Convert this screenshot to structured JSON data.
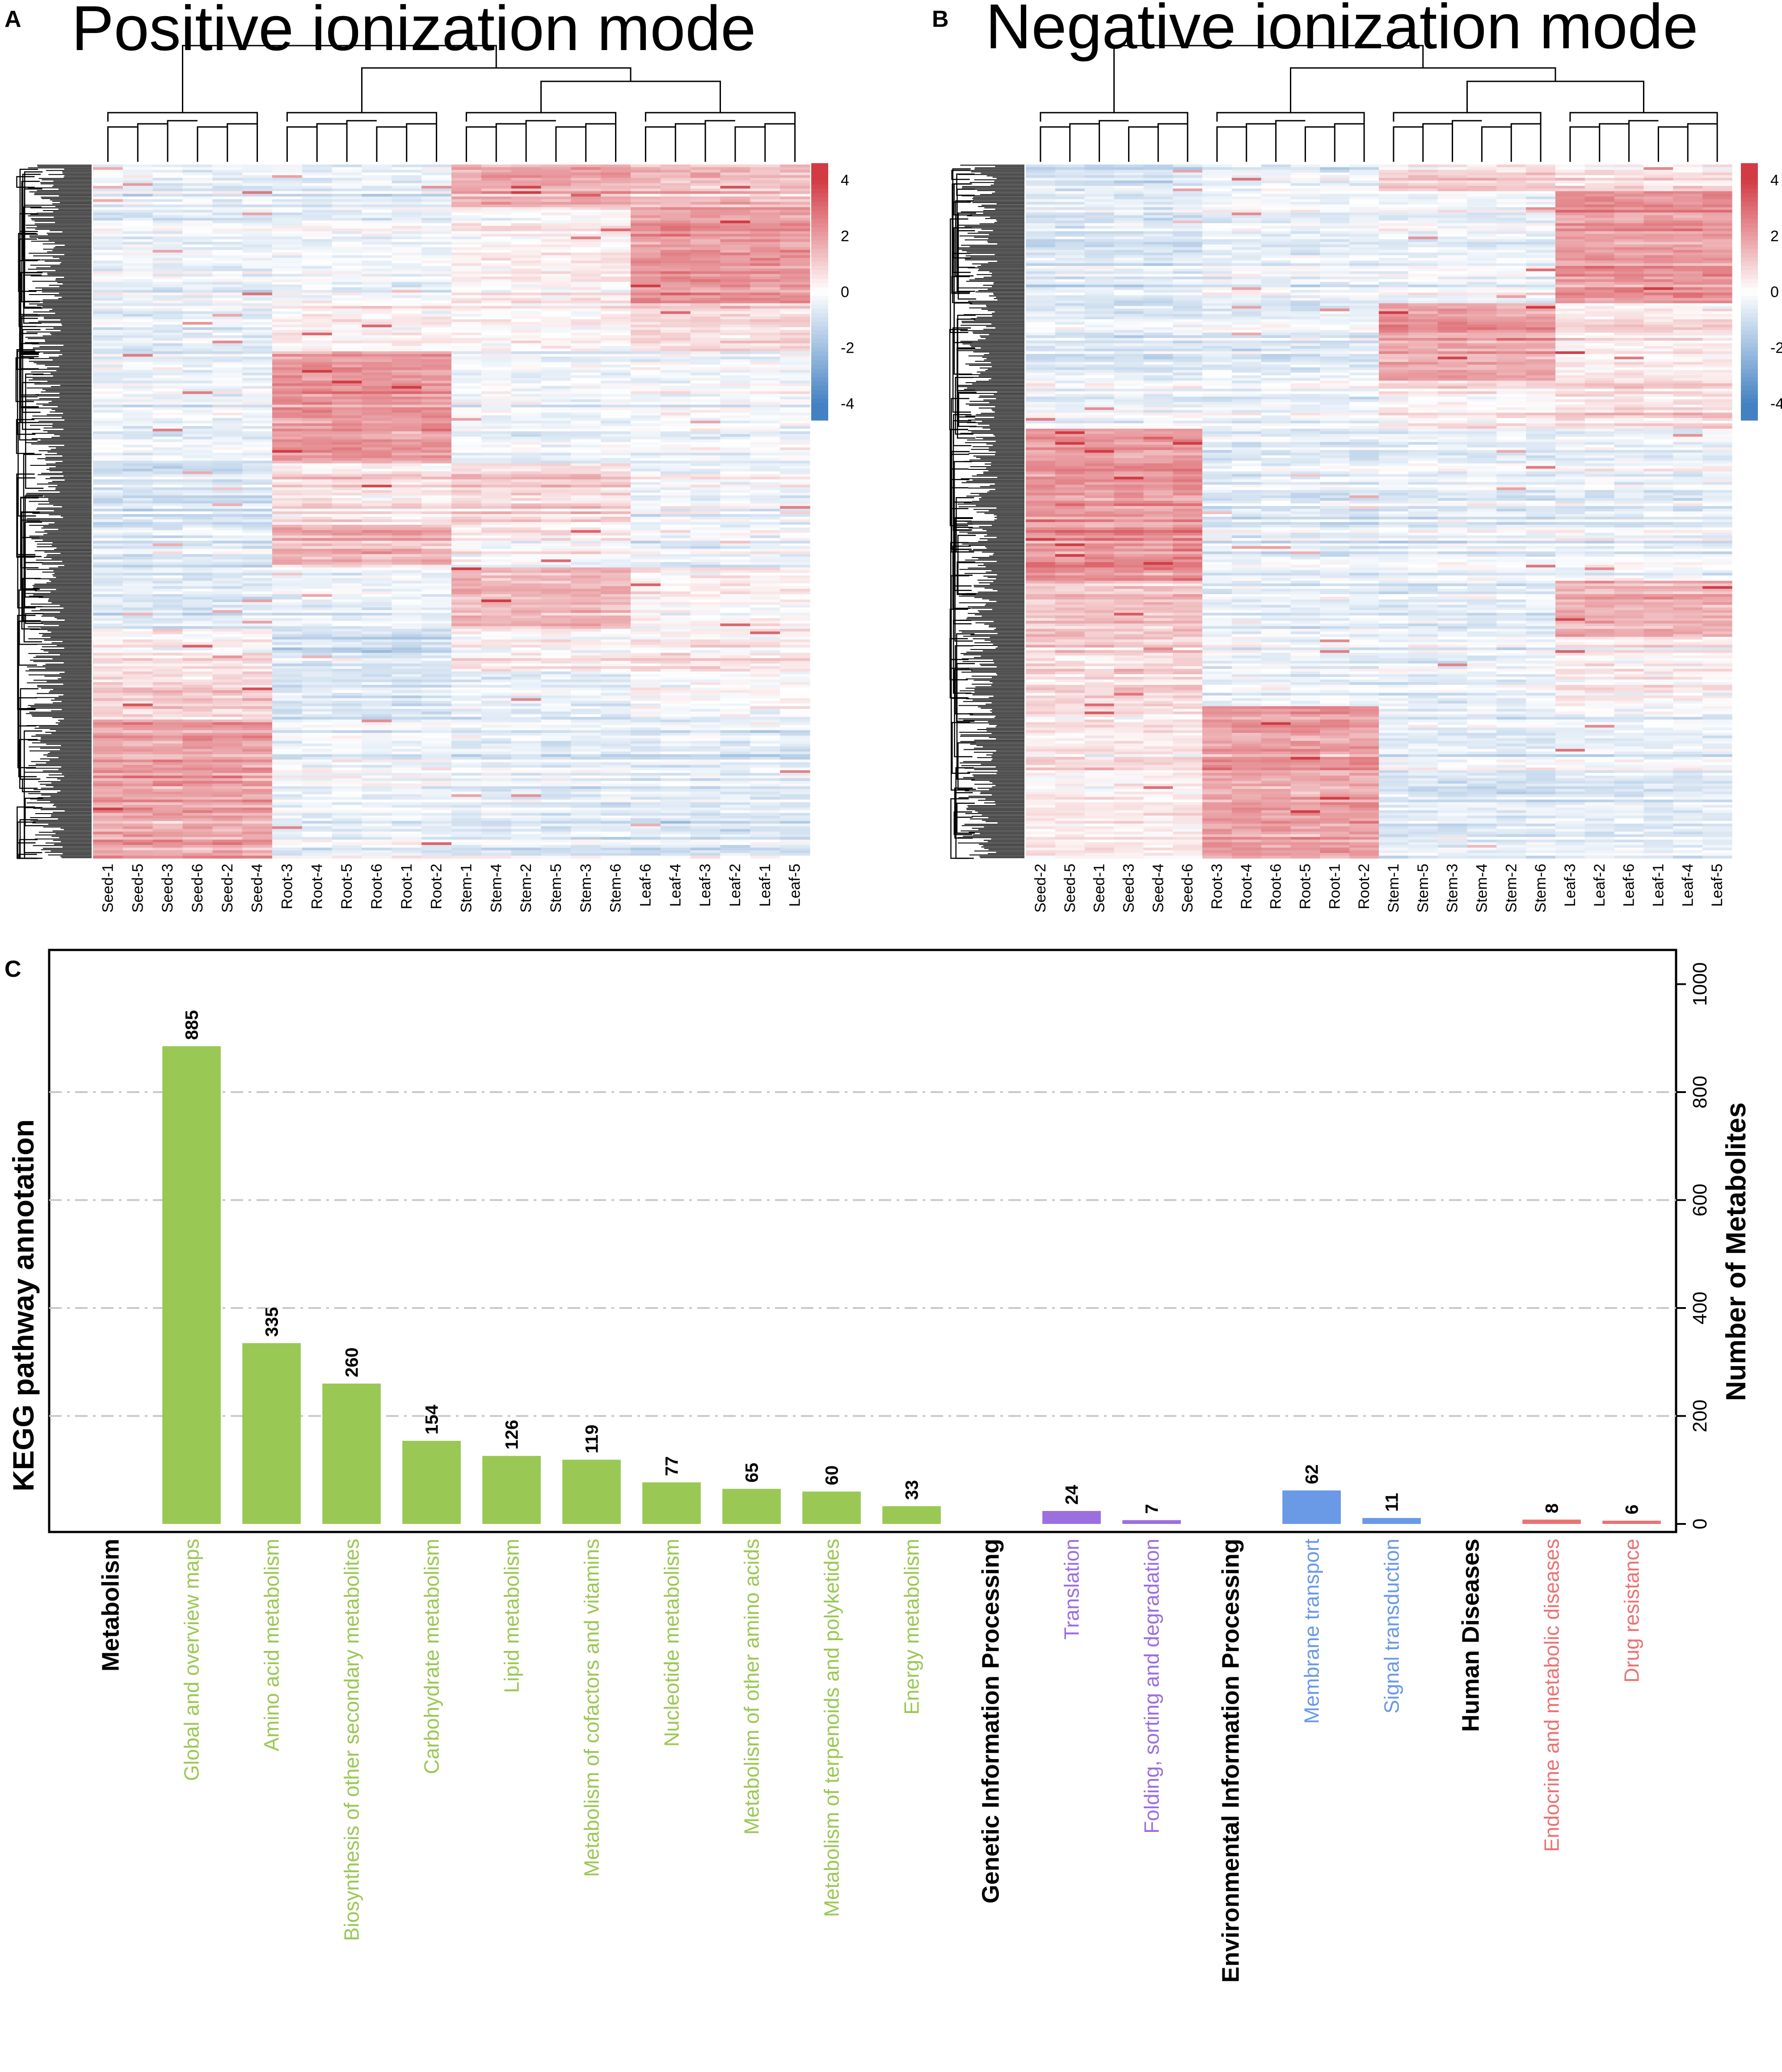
{
  "colors": {
    "heat_high": "#d0313a",
    "heat_mid": "#ffffff",
    "heat_low": "#3b7bbf",
    "metabolism": "#9ac855",
    "genetic": "#9b6fe0",
    "environmental": "#6a99e6",
    "human": "#ea7373",
    "grid": "#c8c8c8"
  },
  "panels": {
    "a": {
      "letter": "A",
      "title": "Positive ionization mode",
      "samples": [
        "Seed-1",
        "Seed-5",
        "Seed-3",
        "Seed-6",
        "Seed-2",
        "Seed-4",
        "Root-3",
        "Root-4",
        "Root-5",
        "Root-6",
        "Root-1",
        "Root-2",
        "Stem-1",
        "Stem-4",
        "Stem-2",
        "Stem-5",
        "Stem-3",
        "Stem-6",
        "Leaf-6",
        "Leaf-4",
        "Leaf-3",
        "Leaf-2",
        "Leaf-1",
        "Leaf-5"
      ],
      "group_order": [
        "Seed",
        "Root",
        "Stem",
        "Leaf"
      ],
      "blocks": [
        {
          "from": 0.0,
          "to": 0.06,
          "Seed": -0.5,
          "Root": -0.6,
          "Stem": 1.6,
          "Leaf": 1.2
        },
        {
          "from": 0.06,
          "to": 0.2,
          "Seed": -0.4,
          "Root": -0.3,
          "Stem": 0.3,
          "Leaf": 2.1
        },
        {
          "from": 0.2,
          "to": 0.27,
          "Seed": -0.6,
          "Root": 0.2,
          "Stem": 0.1,
          "Leaf": 0.7
        },
        {
          "from": 0.27,
          "to": 0.43,
          "Seed": -0.5,
          "Root": 2.0,
          "Stem": -0.4,
          "Leaf": -0.3
        },
        {
          "from": 0.43,
          "to": 0.52,
          "Seed": -0.8,
          "Root": 0.6,
          "Stem": 0.9,
          "Leaf": -0.2
        },
        {
          "from": 0.52,
          "to": 0.58,
          "Seed": -0.6,
          "Root": 1.6,
          "Stem": 0.2,
          "Leaf": -0.3
        },
        {
          "from": 0.58,
          "to": 0.67,
          "Seed": -0.7,
          "Root": -0.4,
          "Stem": 1.5,
          "Leaf": 0.2
        },
        {
          "from": 0.67,
          "to": 0.73,
          "Seed": 0.4,
          "Root": -0.9,
          "Stem": 0.3,
          "Leaf": 0.5
        },
        {
          "from": 0.73,
          "to": 0.8,
          "Seed": 1.0,
          "Root": -0.7,
          "Stem": -0.4,
          "Leaf": 0.1
        },
        {
          "from": 0.8,
          "to": 1.0,
          "Seed": 1.9,
          "Root": -0.3,
          "Stem": -0.5,
          "Leaf": -0.6
        }
      ],
      "scale_ticks": [
        "4",
        "2",
        "0",
        "-2",
        "-4"
      ]
    },
    "b": {
      "letter": "B",
      "title": "Negative ionization mode",
      "samples": [
        "Seed-2",
        "Seed-5",
        "Seed-1",
        "Seed-3",
        "Seed-4",
        "Seed-6",
        "Root-3",
        "Root-4",
        "Root-6",
        "Root-5",
        "Root-1",
        "Root-2",
        "Stem-1",
        "Stem-5",
        "Stem-3",
        "Stem-4",
        "Stem-2",
        "Stem-6",
        "Leaf-3",
        "Leaf-2",
        "Leaf-6",
        "Leaf-1",
        "Leaf-4",
        "Leaf-5"
      ],
      "group_order": [
        "Seed",
        "Root",
        "Stem",
        "Leaf"
      ],
      "blocks": [
        {
          "from": 0.0,
          "to": 0.04,
          "Seed": -0.7,
          "Root": -0.3,
          "Stem": 1.1,
          "Leaf": 0.7
        },
        {
          "from": 0.04,
          "to": 0.2,
          "Seed": -0.6,
          "Root": -0.3,
          "Stem": -0.2,
          "Leaf": 2.2
        },
        {
          "from": 0.2,
          "to": 0.31,
          "Seed": -0.6,
          "Root": -0.5,
          "Stem": 1.9,
          "Leaf": 0.5
        },
        {
          "from": 0.31,
          "to": 0.38,
          "Seed": -0.4,
          "Root": -0.4,
          "Stem": 0.3,
          "Leaf": 0.6
        },
        {
          "from": 0.38,
          "to": 0.6,
          "Seed": 2.1,
          "Root": -0.6,
          "Stem": -0.5,
          "Leaf": -0.4
        },
        {
          "from": 0.6,
          "to": 0.68,
          "Seed": 1.2,
          "Root": -0.5,
          "Stem": -0.6,
          "Leaf": 1.6
        },
        {
          "from": 0.68,
          "to": 0.78,
          "Seed": 0.8,
          "Root": -0.3,
          "Stem": -0.4,
          "Leaf": 0.3
        },
        {
          "from": 0.78,
          "to": 1.0,
          "Seed": 0.5,
          "Root": 2.0,
          "Stem": -0.5,
          "Leaf": -0.4
        }
      ],
      "scale_ticks": [
        "4",
        "2",
        "0",
        "-2",
        "-4"
      ]
    }
  },
  "chart_data": {
    "type": "bar",
    "panel_letter": "C",
    "title": "",
    "ylabel_left": "KEGG pathway annotation",
    "ylabel": "Number of Metabolites",
    "ylim": [
      0,
      1060
    ],
    "yticks": [
      0,
      200,
      400,
      600,
      800,
      1000
    ],
    "grid_lines": [
      200,
      400,
      600,
      800
    ],
    "categories": [
      {
        "label": "Metabolism",
        "value": null,
        "group": "header"
      },
      {
        "label": "Global and overview maps",
        "value": 885,
        "group": "metabolism"
      },
      {
        "label": "Amino acid metabolism",
        "value": 335,
        "group": "metabolism"
      },
      {
        "label": "Biosynthesis of other secondary metabolites",
        "value": 260,
        "group": "metabolism"
      },
      {
        "label": "Carbohydrate metabolism",
        "value": 154,
        "group": "metabolism"
      },
      {
        "label": "Lipid metabolism",
        "value": 126,
        "group": "metabolism"
      },
      {
        "label": "Metabolism of cofactors and vitamins",
        "value": 119,
        "group": "metabolism"
      },
      {
        "label": "Nucleotide metabolism",
        "value": 77,
        "group": "metabolism"
      },
      {
        "label": "Metabolism of other amino acids",
        "value": 65,
        "group": "metabolism"
      },
      {
        "label": "Metabolism of terpenoids and polyketides",
        "value": 60,
        "group": "metabolism"
      },
      {
        "label": "Energy metabolism",
        "value": 33,
        "group": "metabolism"
      },
      {
        "label": "Genetic Information Processing",
        "value": null,
        "group": "header"
      },
      {
        "label": "Translation",
        "value": 24,
        "group": "genetic"
      },
      {
        "label": "Folding, sorting and degradation",
        "value": 7,
        "group": "genetic"
      },
      {
        "label": "Environmental Information Processing",
        "value": null,
        "group": "header"
      },
      {
        "label": "Membrane transport",
        "value": 62,
        "group": "environmental"
      },
      {
        "label": "Signal transduction",
        "value": 11,
        "group": "environmental"
      },
      {
        "label": "Human Diseases",
        "value": null,
        "group": "header"
      },
      {
        "label": "Endocrine and metabolic diseases",
        "value": 8,
        "group": "human"
      },
      {
        "label": "Drug resistance",
        "value": 6,
        "group": "human"
      }
    ]
  }
}
